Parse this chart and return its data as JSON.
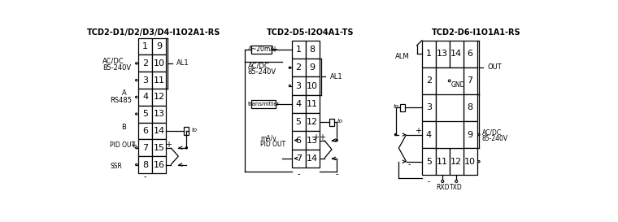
{
  "title1": "TCD2-D1/D2/D3/D4-I1O2A1-RS",
  "title2": "TCD2-D5-I2O4A1-TS",
  "title3": "TCD2-D6-I1O1A1-RS",
  "bg_color": "#ffffff",
  "lc": "#000000"
}
